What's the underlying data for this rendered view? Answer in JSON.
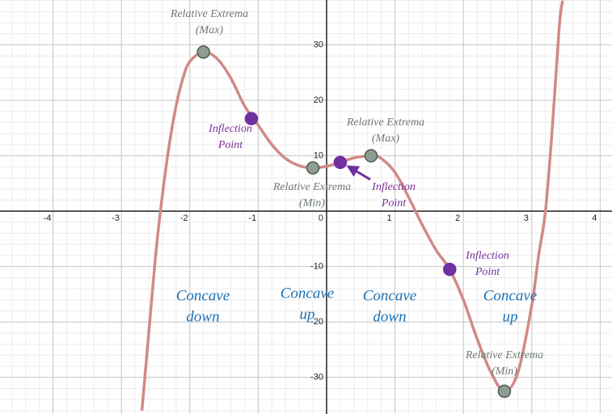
{
  "chart_data": {
    "type": "line",
    "x": [
      -2.7,
      -2.6,
      -2.5,
      -2.4,
      -2.3,
      -2.2,
      -2.1,
      -2.0,
      -1.8,
      -1.6,
      -1.4,
      -1.2,
      -1.0,
      -0.8,
      -0.6,
      -0.4,
      -0.2,
      0,
      0.2,
      0.4,
      0.65,
      0.8,
      1.0,
      1.2,
      1.4,
      1.6,
      1.8,
      2.0,
      2.2,
      2.4,
      2.6,
      2.8,
      3.0,
      3.1,
      3.2,
      3.3,
      3.4,
      3.45
    ],
    "series": [
      {
        "color": "#d08a88",
        "values": [
          -36,
          -22,
          -8,
          3,
          12,
          19,
          24,
          27,
          28.7,
          27.5,
          24,
          19,
          15.5,
          12,
          9.5,
          8.2,
          7.8,
          8.1,
          8.8,
          9.6,
          10,
          9.5,
          7,
          2.5,
          -2.5,
          -7,
          -10.5,
          -16,
          -23,
          -29,
          -32.5,
          -29,
          -17,
          -8,
          0,
          15,
          33,
          38
        ]
      }
    ],
    "points": [
      {
        "color": "#8f9c93",
        "x": [
          -1.8,
          -0.2,
          0.65,
          2.6
        ],
        "values": [
          28.7,
          7.8,
          10,
          -32.5
        ]
      },
      {
        "color": "#7030a0",
        "x": [
          -1.1,
          0.2,
          1.8
        ],
        "values": [
          16.7,
          8.8,
          -10.5
        ]
      }
    ],
    "annotations": [
      {
        "color": "#6f7a72",
        "lines": [
          "Relative Extrema",
          "(Max)"
        ]
      },
      {
        "color": "#7a2f96",
        "lines": [
          "Inflection",
          "Point"
        ]
      },
      {
        "color": "#6f7a72",
        "lines": [
          "Relative Extrema",
          "(Min)"
        ]
      },
      {
        "color": "#6f7a72",
        "lines": [
          "Relative Extrema",
          "(Max)"
        ]
      },
      {
        "color": "#7a2f96",
        "lines": [
          "Inflection",
          "Point"
        ]
      },
      {
        "color": "#7a2f96",
        "lines": [
          "Inflection",
          "Point"
        ]
      },
      {
        "color": "#6f7a72",
        "lines": [
          "Relative Extrema",
          "(Min)"
        ]
      }
    ],
    "regions": [
      {
        "color": "#1a6fb5",
        "lines": [
          "Concave",
          "down"
        ]
      },
      {
        "color": "#1a6fb5",
        "lines": [
          "Concave",
          "up"
        ]
      },
      {
        "color": "#1a6fb5",
        "lines": [
          "Concave",
          "down"
        ]
      },
      {
        "color": "#1a6fb5",
        "lines": [
          "Concave",
          "up"
        ]
      }
    ],
    "xlim": [
      -4.775,
      4.173
    ],
    "ylim": [
      -36.6,
      38.1
    ],
    "xticks": [
      -4,
      -3,
      -2,
      -1,
      0,
      1,
      2,
      3,
      4
    ],
    "yticks": [
      -30,
      -20,
      -10,
      10,
      20,
      30
    ],
    "grid": true,
    "minor_divisions": 5
  }
}
